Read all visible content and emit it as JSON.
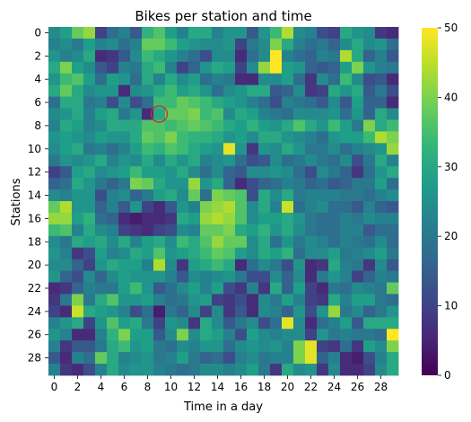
{
  "chart_data": {
    "type": "heatmap",
    "title": "Bikes per station and time",
    "xlabel": "Time in a day",
    "ylabel": "Stations",
    "x_ticks": [
      "0",
      "2",
      "4",
      "6",
      "8",
      "10",
      "12",
      "14",
      "16",
      "18",
      "20",
      "22",
      "24",
      "26",
      "28"
    ],
    "y_ticks": [
      "0",
      "2",
      "4",
      "6",
      "8",
      "10",
      "12",
      "14",
      "16",
      "18",
      "20",
      "22",
      "24",
      "26",
      "28"
    ],
    "n_rows": 30,
    "n_cols": 30,
    "colorbar": {
      "ticks": [
        "0",
        "10",
        "20",
        "30",
        "40",
        "50"
      ],
      "vmin": 0,
      "vmax": 50,
      "colormap": "viridis"
    },
    "highlight": {
      "row": 7,
      "col": 9,
      "shape": "circle",
      "color": "#d62728"
    },
    "values": [
      [
        24,
        28,
        38,
        42,
        10,
        18,
        22,
        14,
        32,
        36,
        28,
        22,
        30,
        30,
        22,
        26,
        26,
        14,
        26,
        34,
        44,
        24,
        22,
        12,
        10,
        30,
        26,
        24,
        8,
        6
      ],
      [
        22,
        24,
        20,
        28,
        22,
        24,
        18,
        22,
        38,
        38,
        34,
        28,
        26,
        24,
        24,
        26,
        10,
        20,
        24,
        40,
        30,
        22,
        18,
        20,
        16,
        24,
        30,
        24,
        26,
        18
      ],
      [
        26,
        22,
        24,
        30,
        6,
        8,
        14,
        24,
        34,
        30,
        26,
        22,
        18,
        12,
        24,
        24,
        6,
        18,
        24,
        50,
        22,
        18,
        16,
        22,
        20,
        44,
        30,
        16,
        22,
        14
      ],
      [
        30,
        40,
        28,
        24,
        14,
        10,
        22,
        20,
        30,
        34,
        22,
        10,
        16,
        26,
        30,
        28,
        10,
        24,
        42,
        50,
        28,
        26,
        16,
        14,
        16,
        28,
        40,
        26,
        22,
        20
      ],
      [
        26,
        34,
        36,
        28,
        18,
        28,
        26,
        18,
        30,
        22,
        30,
        24,
        28,
        18,
        22,
        20,
        6,
        6,
        24,
        24,
        28,
        18,
        8,
        24,
        18,
        34,
        24,
        12,
        14,
        6
      ],
      [
        30,
        38,
        30,
        24,
        26,
        26,
        6,
        24,
        26,
        30,
        34,
        28,
        30,
        26,
        18,
        24,
        26,
        30,
        30,
        14,
        16,
        24,
        8,
        10,
        30,
        26,
        30,
        14,
        20,
        12
      ],
      [
        18,
        30,
        30,
        20,
        22,
        12,
        24,
        12,
        18,
        34,
        34,
        38,
        36,
        34,
        30,
        28,
        26,
        22,
        18,
        12,
        22,
        20,
        18,
        14,
        24,
        14,
        28,
        16,
        16,
        6
      ],
      [
        24,
        26,
        30,
        22,
        28,
        30,
        20,
        26,
        6,
        30,
        38,
        38,
        40,
        34,
        36,
        24,
        30,
        28,
        22,
        20,
        18,
        24,
        24,
        24,
        26,
        18,
        26,
        16,
        30,
        24
      ],
      [
        22,
        30,
        28,
        22,
        24,
        30,
        30,
        30,
        36,
        36,
        34,
        36,
        38,
        36,
        34,
        30,
        28,
        32,
        28,
        26,
        30,
        36,
        30,
        26,
        34,
        28,
        20,
        40,
        30,
        34
      ],
      [
        26,
        28,
        26,
        24,
        28,
        26,
        26,
        30,
        38,
        36,
        40,
        34,
        32,
        32,
        30,
        26,
        28,
        24,
        30,
        30,
        26,
        24,
        22,
        18,
        26,
        28,
        28,
        34,
        44,
        40
      ],
      [
        24,
        28,
        30,
        20,
        22,
        18,
        22,
        28,
        34,
        32,
        36,
        34,
        30,
        28,
        26,
        48,
        26,
        8,
        26,
        24,
        30,
        26,
        20,
        20,
        24,
        18,
        22,
        24,
        26,
        42
      ],
      [
        20,
        26,
        24,
        26,
        30,
        22,
        26,
        24,
        30,
        24,
        30,
        26,
        30,
        22,
        24,
        26,
        18,
        12,
        14,
        24,
        18,
        20,
        24,
        20,
        18,
        24,
        12,
        20,
        30,
        22
      ],
      [
        10,
        14,
        28,
        30,
        24,
        26,
        28,
        34,
        28,
        28,
        26,
        30,
        24,
        18,
        24,
        16,
        14,
        24,
        24,
        26,
        24,
        18,
        12,
        24,
        20,
        16,
        8,
        18,
        26,
        30
      ],
      [
        16,
        18,
        30,
        26,
        20,
        16,
        20,
        40,
        38,
        30,
        26,
        26,
        42,
        26,
        30,
        16,
        6,
        12,
        16,
        18,
        22,
        20,
        16,
        18,
        14,
        16,
        20,
        20,
        28,
        18
      ],
      [
        24,
        22,
        26,
        26,
        12,
        22,
        24,
        16,
        20,
        28,
        30,
        24,
        38,
        18,
        40,
        38,
        36,
        12,
        30,
        24,
        30,
        20,
        22,
        22,
        22,
        20,
        20,
        18,
        22,
        24
      ],
      [
        38,
        44,
        26,
        26,
        16,
        22,
        14,
        26,
        10,
        6,
        14,
        26,
        22,
        40,
        42,
        44,
        36,
        24,
        30,
        22,
        46,
        18,
        22,
        24,
        18,
        18,
        14,
        22,
        16,
        14
      ],
      [
        42,
        42,
        28,
        32,
        18,
        16,
        6,
        4,
        6,
        6,
        8,
        30,
        28,
        42,
        44,
        42,
        36,
        24,
        28,
        28,
        30,
        26,
        20,
        18,
        18,
        22,
        20,
        24,
        22,
        22
      ],
      [
        34,
        36,
        22,
        30,
        24,
        22,
        10,
        8,
        6,
        10,
        12,
        24,
        22,
        38,
        38,
        40,
        30,
        28,
        32,
        26,
        30,
        24,
        20,
        18,
        18,
        22,
        22,
        14,
        18,
        18
      ],
      [
        24,
        20,
        30,
        28,
        30,
        24,
        30,
        22,
        28,
        30,
        24,
        34,
        30,
        36,
        42,
        38,
        38,
        24,
        30,
        18,
        26,
        20,
        24,
        22,
        18,
        22,
        20,
        18,
        24,
        18
      ],
      [
        26,
        22,
        8,
        12,
        28,
        22,
        24,
        30,
        28,
        36,
        26,
        28,
        30,
        34,
        38,
        36,
        28,
        24,
        30,
        28,
        32,
        18,
        24,
        24,
        28,
        20,
        22,
        24,
        28,
        20
      ],
      [
        24,
        24,
        16,
        10,
        26,
        30,
        28,
        28,
        22,
        44,
        24,
        8,
        28,
        30,
        34,
        30,
        6,
        18,
        24,
        20,
        12,
        26,
        6,
        8,
        30,
        22,
        20,
        8,
        24,
        14
      ],
      [
        26,
        16,
        12,
        24,
        16,
        24,
        28,
        26,
        26,
        26,
        22,
        14,
        24,
        22,
        24,
        26,
        20,
        12,
        12,
        24,
        16,
        24,
        6,
        20,
        26,
        22,
        10,
        16,
        22,
        20
      ],
      [
        6,
        8,
        16,
        22,
        20,
        20,
        28,
        34,
        26,
        14,
        18,
        24,
        28,
        22,
        28,
        12,
        8,
        22,
        8,
        30,
        16,
        28,
        10,
        6,
        20,
        18,
        24,
        22,
        20,
        38
      ],
      [
        8,
        20,
        40,
        20,
        30,
        36,
        26,
        26,
        28,
        22,
        18,
        20,
        26,
        28,
        10,
        8,
        12,
        6,
        24,
        20,
        28,
        22,
        10,
        8,
        30,
        22,
        28,
        28,
        20,
        18
      ],
      [
        10,
        6,
        46,
        30,
        28,
        26,
        22,
        12,
        18,
        4,
        20,
        16,
        24,
        10,
        24,
        8,
        14,
        6,
        24,
        22,
        16,
        26,
        12,
        26,
        42,
        20,
        24,
        16,
        20,
        26
      ],
      [
        22,
        26,
        30,
        10,
        26,
        36,
        28,
        30,
        20,
        10,
        26,
        24,
        8,
        30,
        24,
        14,
        20,
        24,
        12,
        18,
        48,
        24,
        6,
        18,
        22,
        28,
        14,
        30,
        30,
        30
      ],
      [
        26,
        22,
        6,
        6,
        22,
        32,
        40,
        28,
        28,
        14,
        24,
        40,
        24,
        30,
        28,
        22,
        12,
        28,
        24,
        22,
        24,
        24,
        10,
        26,
        20,
        22,
        20,
        20,
        18,
        50
      ],
      [
        22,
        8,
        14,
        14,
        20,
        30,
        34,
        26,
        28,
        20,
        18,
        24,
        22,
        26,
        26,
        18,
        24,
        26,
        24,
        26,
        22,
        40,
        48,
        10,
        8,
        18,
        8,
        28,
        24,
        40
      ],
      [
        14,
        6,
        22,
        18,
        38,
        30,
        22,
        24,
        26,
        20,
        22,
        28,
        20,
        16,
        18,
        12,
        22,
        24,
        20,
        22,
        22,
        40,
        48,
        16,
        22,
        6,
        4,
        12,
        22,
        30
      ],
      [
        22,
        8,
        6,
        12,
        22,
        30,
        24,
        26,
        26,
        22,
        20,
        18,
        20,
        24,
        24,
        22,
        24,
        28,
        20,
        8,
        30,
        24,
        26,
        8,
        24,
        6,
        6,
        10,
        24,
        30
      ]
    ]
  }
}
